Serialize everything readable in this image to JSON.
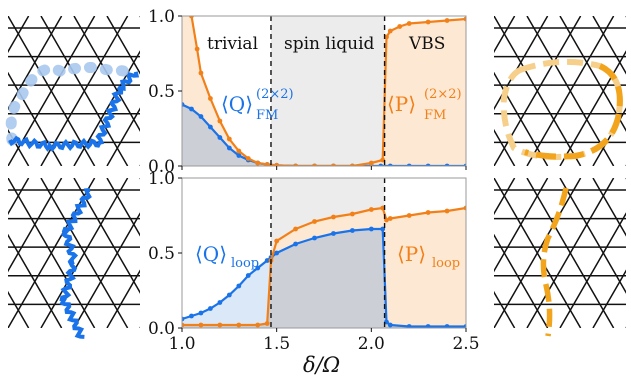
{
  "colors": {
    "blue": "#1a73e8",
    "orange": "#f28018",
    "blue_fill": "#dbe8f7",
    "orange_fill": "#fde8d4",
    "grey_fill": "#c8c8cc",
    "liquid_bg": "#ececec",
    "light_blue": "#a9c8ee",
    "light_orange": "#f6cf8a"
  },
  "icons": [
    "kagome-lattice-icon",
    "kagome-lattice-icon",
    "kagome-lattice-icon",
    "kagome-lattice-icon"
  ],
  "chart_data": [
    {
      "type": "line",
      "xlabel": "",
      "ylabel": "",
      "xlim": [
        1.0,
        2.5
      ],
      "ylim": [
        0,
        1
      ],
      "y_ticks": [
        "0.0",
        "0.5",
        "1.0"
      ],
      "x_ticks": [],
      "regions": [
        "trivial",
        "spin liquid",
        "VBS"
      ],
      "boundaries": [
        1.47,
        2.07
      ],
      "series": [
        {
          "name": "⟨Q⟩FM(2×2)",
          "label_main": "⟨Q⟩",
          "label_sub": "FM",
          "label_sup": "(2×2)",
          "x": [
            1.0,
            1.05,
            1.1,
            1.15,
            1.2,
            1.25,
            1.3,
            1.35,
            1.4,
            1.45,
            1.5,
            1.6,
            1.7,
            1.8,
            1.9,
            2.0,
            2.05,
            2.1,
            2.2,
            2.3,
            2.4,
            2.5
          ],
          "values": [
            0.41,
            0.38,
            0.33,
            0.26,
            0.19,
            0.12,
            0.07,
            0.04,
            0.02,
            0.01,
            0.005,
            0.0,
            0.0,
            0.0,
            0.0,
            0.0,
            0.0,
            0.0,
            0.0,
            0.0,
            0.0,
            0.0
          ]
        },
        {
          "name": "⟨P⟩FM(2×2)",
          "label_main": "⟨P⟩",
          "label_sub": "FM",
          "label_sup": "(2×2)",
          "x": [
            1.05,
            1.08,
            1.1,
            1.15,
            1.2,
            1.25,
            1.3,
            1.35,
            1.4,
            1.45,
            1.5,
            1.6,
            1.7,
            1.8,
            1.9,
            2.0,
            2.06,
            2.08,
            2.1,
            2.15,
            2.2,
            2.3,
            2.4,
            2.5
          ],
          "values": [
            1.0,
            0.78,
            0.62,
            0.45,
            0.3,
            0.18,
            0.1,
            0.05,
            0.02,
            0.01,
            0.005,
            0.0,
            0.0,
            0.0,
            0.0,
            0.02,
            0.04,
            0.86,
            0.9,
            0.93,
            0.95,
            0.96,
            0.97,
            0.98
          ]
        }
      ]
    },
    {
      "type": "line",
      "xlabel": "δ/Ω",
      "ylabel": "",
      "xlim": [
        1.0,
        2.5
      ],
      "ylim": [
        0,
        1
      ],
      "y_ticks": [
        "0.0",
        "0.5",
        "1.0"
      ],
      "x_ticks": [
        "1.0",
        "1.5",
        "2.0",
        "2.5"
      ],
      "boundaries": [
        1.47,
        2.07
      ],
      "series": [
        {
          "name": "⟨Q⟩loop",
          "label_main": "⟨Q⟩",
          "label_sub": "loop",
          "x": [
            1.0,
            1.05,
            1.1,
            1.15,
            1.2,
            1.25,
            1.3,
            1.35,
            1.4,
            1.45,
            1.47,
            1.5,
            1.6,
            1.7,
            1.8,
            1.9,
            2.0,
            2.06,
            2.08,
            2.1,
            2.2,
            2.3,
            2.4,
            2.5
          ],
          "values": [
            0.06,
            0.08,
            0.1,
            0.13,
            0.17,
            0.22,
            0.28,
            0.35,
            0.4,
            0.45,
            0.47,
            0.5,
            0.56,
            0.6,
            0.63,
            0.65,
            0.66,
            0.66,
            0.04,
            0.02,
            0.01,
            0.01,
            0.01,
            0.01
          ]
        },
        {
          "name": "⟨P⟩loop",
          "label_main": "⟨P⟩",
          "label_sub": "loop",
          "x": [
            1.0,
            1.1,
            1.2,
            1.3,
            1.4,
            1.45,
            1.47,
            1.5,
            1.6,
            1.7,
            1.8,
            1.9,
            2.0,
            2.06,
            2.08,
            2.1,
            2.2,
            2.3,
            2.4,
            2.5
          ],
          "values": [
            0.02,
            0.02,
            0.02,
            0.02,
            0.02,
            0.03,
            0.45,
            0.58,
            0.66,
            0.71,
            0.74,
            0.76,
            0.79,
            0.8,
            0.72,
            0.73,
            0.75,
            0.77,
            0.78,
            0.8
          ]
        }
      ]
    }
  ]
}
